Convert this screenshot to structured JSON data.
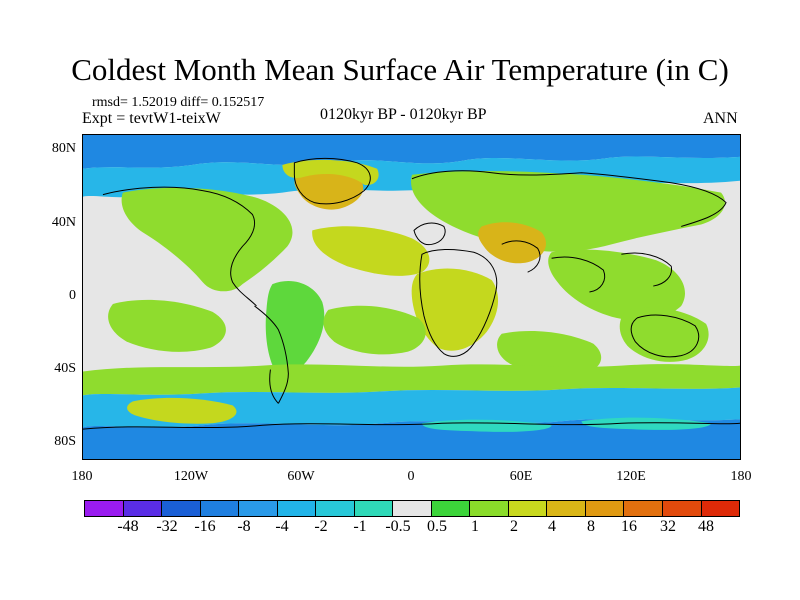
{
  "title": "Coldest Month Mean Surface Air Temperature (in C)",
  "stats": "rmsd= 1.52019 diff= 0.152517",
  "experiment": "Expt = tevtW1-teixW",
  "period": "0120kyr BP - 0120kyr BP",
  "season": "ANN",
  "lat_labels": [
    "80N",
    "40N",
    "0",
    "40S",
    "80S"
  ],
  "lon_labels": [
    "180",
    "120W",
    "60W",
    "0",
    "60E",
    "120E",
    "180"
  ],
  "colorbar": {
    "labels": [
      "-48",
      "-32",
      "-16",
      "-8",
      "-4",
      "-2",
      "-1",
      "-0.5",
      "0.5",
      "1",
      "2",
      "4",
      "8",
      "16",
      "32",
      "48"
    ],
    "colors": [
      "#9a1cf0",
      "#5a2de6",
      "#1a5fd6",
      "#1f7fe0",
      "#2a9ae8",
      "#22b4e8",
      "#28c8d8",
      "#2fd9b8",
      "#e6e6e6",
      "#3cd43a",
      "#8adc2a",
      "#c8d81e",
      "#dab617",
      "#e09a12",
      "#e2700e",
      "#e24a0c",
      "#de2a08"
    ]
  },
  "map_colors": {
    "neutral": "#e6e6e6",
    "green": "#8fdc2e",
    "light_green": "#5ed83c",
    "yellow_green": "#c4d81e",
    "orange": "#d8b419",
    "light_blue": "#27b6e8",
    "blue": "#1f88e2",
    "cyan": "#2fd9c0",
    "coast": "#000000"
  }
}
